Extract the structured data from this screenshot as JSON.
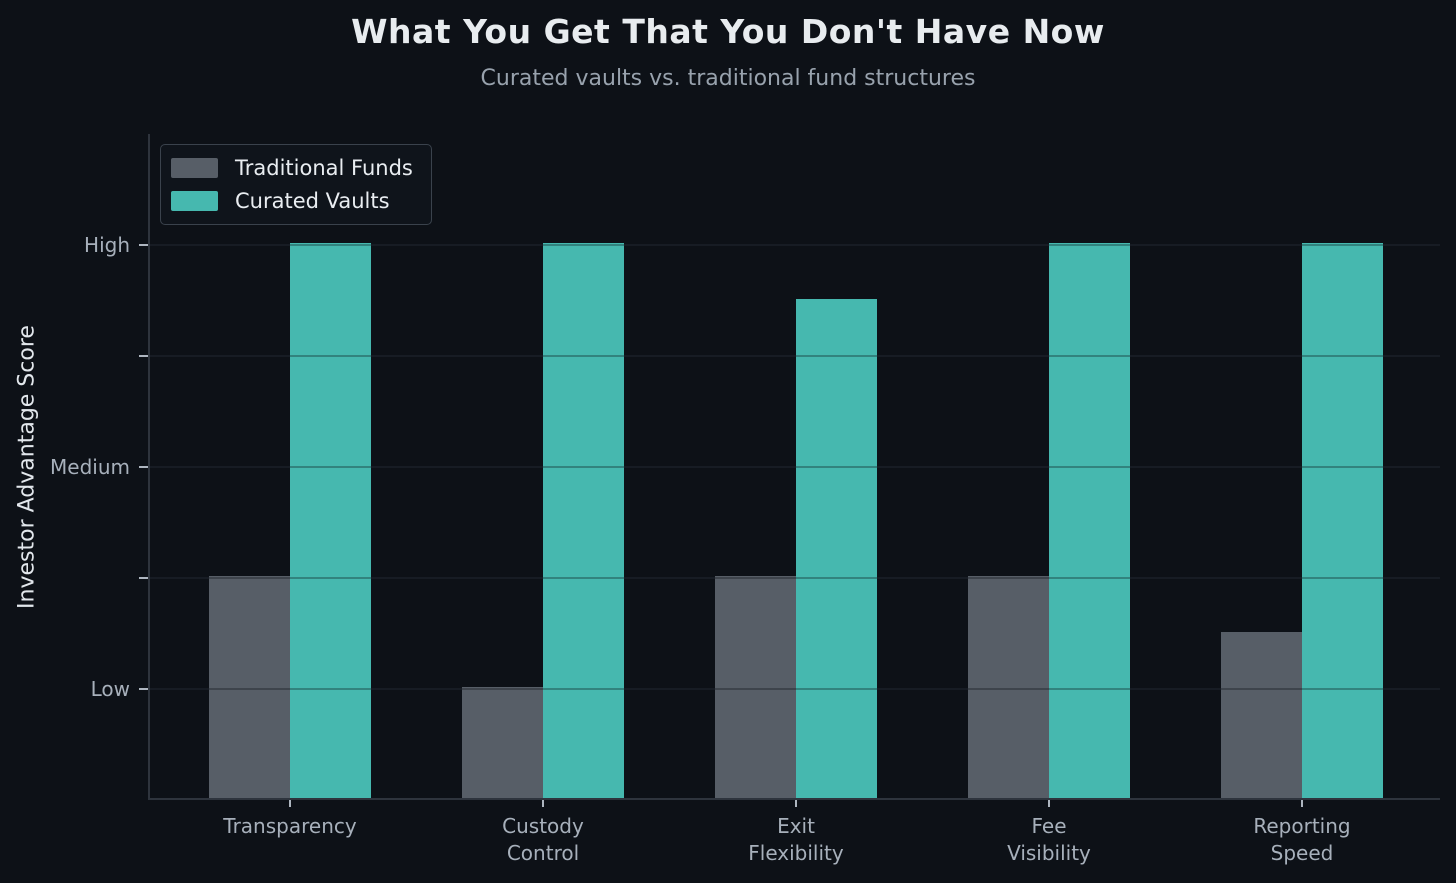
{
  "chart_data": {
    "type": "bar",
    "title": "What You Get That You Don't Have Now",
    "subtitle": "Curated vaults vs. traditional fund structures",
    "ylabel": "Investor Advantage Score",
    "xlabel": "",
    "categories": [
      "Transparency",
      "Custody\nControl",
      "Exit\nFlexibility",
      "Fee\nVisibility",
      "Reporting\nSpeed"
    ],
    "series": [
      {
        "name": "Traditional Funds",
        "color": "#575e67",
        "values": [
          1.5,
          1.0,
          1.5,
          1.5,
          1.25
        ]
      },
      {
        "name": "Curated Vaults",
        "color": "#46b8af",
        "values": [
          3.0,
          3.0,
          2.75,
          3.0,
          3.0
        ]
      }
    ],
    "value_scale": {
      "Low": 1,
      "Medium": 2,
      "High": 3
    },
    "ylim": [
      0.5,
      3.5
    ],
    "yticks": [
      {
        "value": 1.0,
        "label": "Low"
      },
      {
        "value": 1.5,
        "label": ""
      },
      {
        "value": 2.0,
        "label": "Medium"
      },
      {
        "value": 2.5,
        "label": ""
      },
      {
        "value": 3.0,
        "label": "High"
      }
    ],
    "grid": "horizontal",
    "legend_position": "upper-left",
    "colors": {
      "background": "#0d1117",
      "title_text": "#e8ecef",
      "subtitle_text": "#98a2ad",
      "tick_text": "#a7b0bb",
      "axis_label_text": "#e2e7ec",
      "legend_text": "#e9edf1",
      "spine": "#2e343d",
      "gridline": "#1f252e"
    }
  }
}
